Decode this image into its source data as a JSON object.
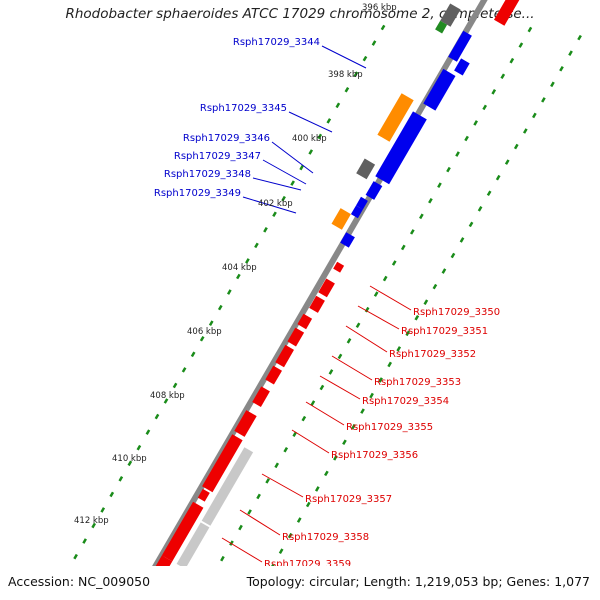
{
  "title": "Rhodobacter sphaeroides ATCC 17029 chromosome 2, complete se...",
  "footer": {
    "accession": "Accession: NC_009050",
    "topology": "Topology: circular; Length: 1,219,053 bp; Genes: 1,077"
  },
  "colors": {
    "backbone": "#888888",
    "forward_gene": "#0000ee",
    "reverse_gene": "#ee0000",
    "pseudo_gene": "#ff8c00",
    "grey_feature": "#c8c8c8",
    "dark_grey_feature": "#606060",
    "green_feature": "#228b22",
    "lime_feature": "#adff2f",
    "dotted_track": "#1a8c1a",
    "forward_label": "#0000cc",
    "reverse_label": "#dd0000"
  },
  "kbp_ticks": [
    "396 kbp",
    "398 kbp",
    "400 kbp",
    "402 kbp",
    "404 kbp",
    "406 kbp",
    "408 kbp",
    "410 kbp",
    "412 kbp"
  ],
  "genes_forward": [
    "Rsph17029_3344",
    "Rsph17029_3345",
    "Rsph17029_3346",
    "Rsph17029_3347",
    "Rsph17029_3348",
    "Rsph17029_3349"
  ],
  "genes_reverse": [
    "Rsph17029_3350",
    "Rsph17029_3351",
    "Rsph17029_3352",
    "Rsph17029_3353",
    "Rsph17029_3354",
    "Rsph17029_3355",
    "Rsph17029_3356",
    "Rsph17029_3357",
    "Rsph17029_3358",
    "Rsph17029_3359"
  ]
}
